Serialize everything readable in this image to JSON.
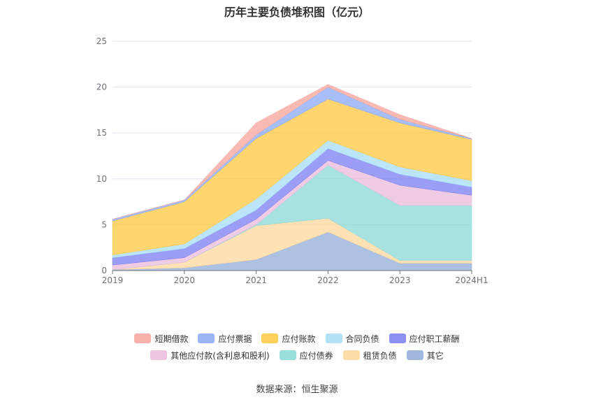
{
  "chart_data": {
    "type": "area",
    "stacked": true,
    "title": "历年主要负债堆积图（亿元）",
    "xlabel": "",
    "ylabel": "",
    "ylim": [
      0,
      25
    ],
    "yticks": [
      0,
      5,
      10,
      15,
      20,
      25
    ],
    "categories": [
      "2019",
      "2020",
      "2021",
      "2022",
      "2023",
      "2024H1"
    ],
    "series": [
      {
        "name": "其它",
        "color": "#92acd8",
        "values": [
          0.1,
          0.3,
          1.2,
          4.2,
          0.8,
          0.8
        ]
      },
      {
        "name": "租赁负债",
        "color": "#fdd79b",
        "values": [
          0.0,
          0.6,
          3.7,
          1.5,
          0.3,
          0.3
        ]
      },
      {
        "name": "应付债券",
        "color": "#8ad8d6",
        "values": [
          0.0,
          0.0,
          0.1,
          5.8,
          6.0,
          6.0
        ]
      },
      {
        "name": "其他应付款(含利息和股利)",
        "color": "#ebbadb",
        "values": [
          0.5,
          0.5,
          0.6,
          0.5,
          2.2,
          1.1
        ]
      },
      {
        "name": "应付职工薪酬",
        "color": "#7a7ef0",
        "values": [
          0.8,
          1.0,
          1.0,
          1.3,
          1.2,
          0.9
        ]
      },
      {
        "name": "合同负债",
        "color": "#a6ddf6",
        "values": [
          0.3,
          0.5,
          1.2,
          0.9,
          0.8,
          0.7
        ]
      },
      {
        "name": "应付账款",
        "color": "#fdc73e",
        "values": [
          3.7,
          4.6,
          6.6,
          4.5,
          4.8,
          4.5
        ]
      },
      {
        "name": "应付票据",
        "color": "#8aa8f5",
        "values": [
          0.2,
          0.2,
          0.4,
          1.3,
          0.4,
          0.1
        ]
      },
      {
        "name": "短期借款",
        "color": "#f8a39b",
        "values": [
          0.0,
          0.0,
          1.3,
          0.3,
          0.5,
          0.0
        ]
      }
    ],
    "legend": {
      "position": "bottom",
      "rows": [
        [
          "短期借款",
          "应付票据",
          "应付账款",
          "合同负债",
          "应付职工薪酬"
        ],
        [
          "其他应付款(含利息和股利)",
          "应付债券",
          "租赁负债",
          "其它"
        ]
      ]
    }
  },
  "source_text": "数据来源：恒生聚源"
}
